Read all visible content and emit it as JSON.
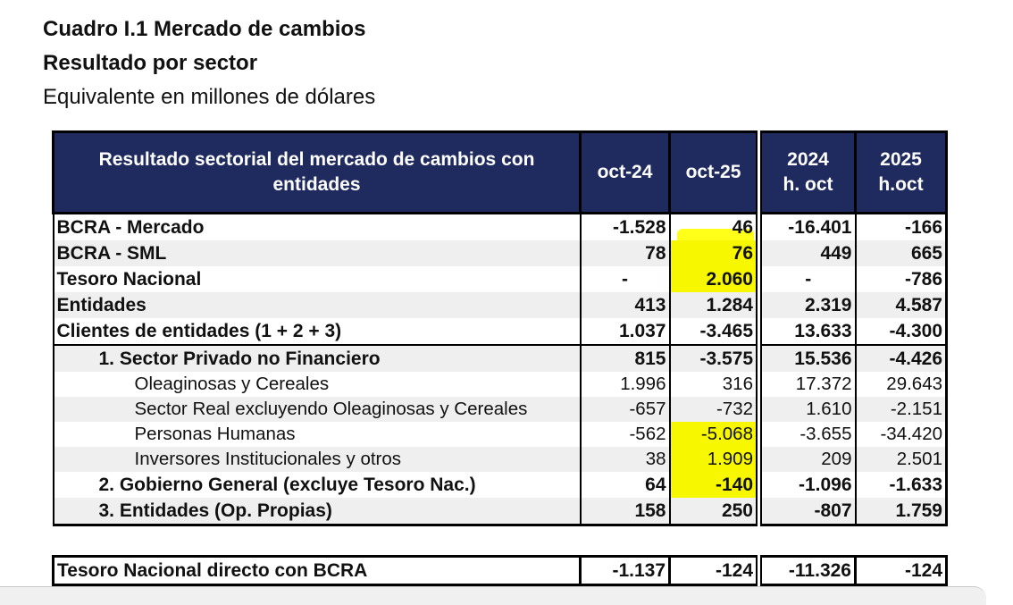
{
  "title_line1": "Cuadro I.1 Mercado de cambios",
  "title_line2": "Resultado por sector",
  "title_line3": "Equivalente en millones de dólares",
  "header": {
    "label": "Resultado sectorial del mercado de cambios con entidades",
    "c1": "oct-24",
    "c2": "oct-25",
    "c3a": "2024",
    "c3b": "h. oct",
    "c4a": "2025",
    "c4b": "h.oct"
  },
  "rows": [
    {
      "label": "BCRA - Mercado",
      "v": [
        "-1.528",
        "46",
        "-16.401",
        "-166"
      ]
    },
    {
      "label": "BCRA - SML",
      "v": [
        "78",
        "76",
        "449",
        "665"
      ]
    },
    {
      "label": "Tesoro Nacional",
      "v": [
        "-",
        "2.060",
        "-",
        "-786"
      ]
    },
    {
      "label": "Entidades",
      "v": [
        "413",
        "1.284",
        "2.319",
        "4.587"
      ]
    },
    {
      "label": "Clientes de entidades (1 + 2 + 3)",
      "v": [
        "1.037",
        "-3.465",
        "13.633",
        "-4.300"
      ]
    },
    {
      "label": "1. Sector Privado no Financiero",
      "v": [
        "815",
        "-3.575",
        "15.536",
        "-4.426"
      ]
    },
    {
      "label": "Oleaginosas y Cereales",
      "v": [
        "1.996",
        "316",
        "17.372",
        "29.643"
      ]
    },
    {
      "label": "Sector Real excluyendo Oleaginosas y Cereales",
      "v": [
        "-657",
        "-732",
        "1.610",
        "-2.151"
      ]
    },
    {
      "label": "Personas Humanas",
      "v": [
        "-562",
        "-5.068",
        "-3.655",
        "-34.420"
      ]
    },
    {
      "label": "Inversores Institucionales y otros",
      "v": [
        "38",
        "1.909",
        "209",
        "2.501"
      ]
    },
    {
      "label": "2. Gobierno General (excluye Tesoro Nac.)",
      "v": [
        "64",
        "-140",
        "-1.096",
        "-1.633"
      ]
    },
    {
      "label": "3. Entidades (Op. Propias)",
      "v": [
        "158",
        "250",
        "-807",
        "1.759"
      ]
    }
  ],
  "footer_row": {
    "label": "Tesoro Nacional directo con BCRA",
    "v": [
      "-1.137",
      "-124",
      "-11.326",
      "-124"
    ]
  },
  "colors": {
    "header_bg": "#1f2a5e",
    "highlight": "#ffff00",
    "shade": "#efefef"
  }
}
